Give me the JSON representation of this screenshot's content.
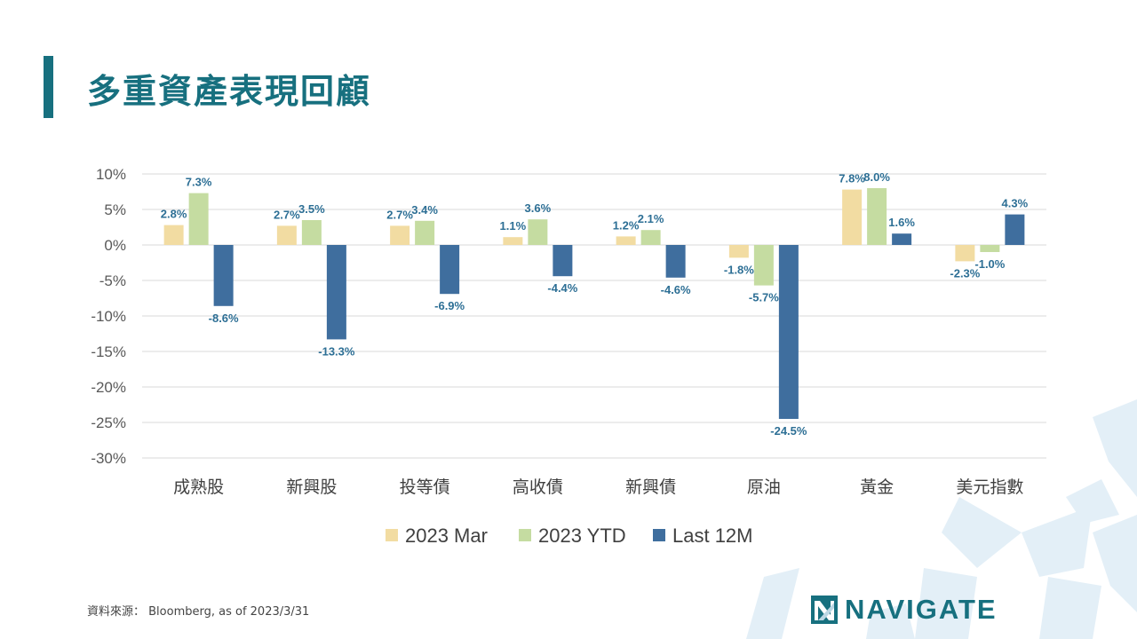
{
  "slide": {
    "title": "多重資產表現回顧",
    "source": "資料來源： Bloomberg, as of 2023/3/31",
    "logo_text": "NAVIGATE"
  },
  "colors": {
    "accent": "#17707f",
    "series_mar": "#f2dca2",
    "series_ytd": "#c5dca1",
    "series_12m": "#3f6e9e",
    "label_text": "#2d6f95"
  },
  "chart_data": {
    "type": "bar",
    "categories": [
      "成熟股",
      "新興股",
      "投等債",
      "高收債",
      "新興債",
      "原油",
      "黃金",
      "美元指數"
    ],
    "series": [
      {
        "name": "2023 Mar",
        "color": "#f2dca2",
        "values": [
          2.8,
          2.7,
          2.7,
          1.1,
          1.2,
          -1.8,
          7.8,
          -2.3
        ]
      },
      {
        "name": "2023 YTD",
        "color": "#c5dca1",
        "values": [
          7.3,
          3.5,
          3.4,
          3.6,
          2.1,
          -5.7,
          8.0,
          -1.0
        ]
      },
      {
        "name": "Last 12M",
        "color": "#3f6e9e",
        "values": [
          -8.6,
          -13.3,
          -6.9,
          -4.4,
          -4.6,
          -24.5,
          1.6,
          4.3
        ]
      }
    ],
    "yticks": [
      "10%",
      "5%",
      "0%",
      "-5%",
      "-10%",
      "-15%",
      "-20%",
      "-25%",
      "-30%"
    ],
    "ylim": [
      -30,
      10
    ],
    "grid": true,
    "legend": "bottom",
    "data_labels": true,
    "label_suffix": "%"
  }
}
